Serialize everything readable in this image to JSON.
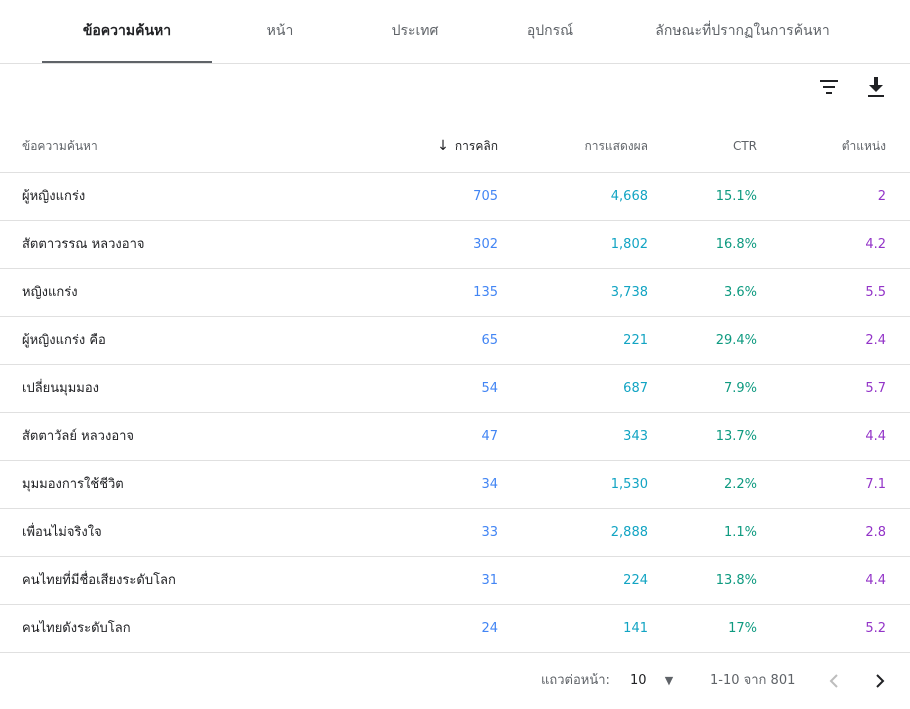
{
  "tabs": [
    {
      "label": "ข้อความค้นหา",
      "active": true
    },
    {
      "label": "หน้า"
    },
    {
      "label": "ประเทศ"
    },
    {
      "label": "อุปกรณ์"
    },
    {
      "label": "ลักษณะที่ปรากฏในการค้นหา"
    }
  ],
  "toolbar": {
    "filter_icon": "filter-icon",
    "download_icon": "download-icon"
  },
  "table": {
    "headers": {
      "query": "ข้อความค้นหา",
      "clicks": "การคลิก",
      "impressions": "การแสดงผล",
      "ctr": "CTR",
      "position": "ตำแหน่ง"
    },
    "sort_icon": "arrow-down-icon",
    "rows": [
      {
        "query": "ผู้หญิงแกร่ง",
        "clicks": "705",
        "impressions": "4,668",
        "ctr": "15.1%",
        "position": "2"
      },
      {
        "query": "สัตตาวรรณ หลวงอาจ",
        "clicks": "302",
        "impressions": "1,802",
        "ctr": "16.8%",
        "position": "4.2"
      },
      {
        "query": "หญิงแกร่ง",
        "clicks": "135",
        "impressions": "3,738",
        "ctr": "3.6%",
        "position": "5.5"
      },
      {
        "query": "ผู้หญิงแกร่ง คือ",
        "clicks": "65",
        "impressions": "221",
        "ctr": "29.4%",
        "position": "2.4"
      },
      {
        "query": "เปลี่ยนมุมมอง",
        "clicks": "54",
        "impressions": "687",
        "ctr": "7.9%",
        "position": "5.7"
      },
      {
        "query": "สัตตาวัลย์ หลวงอาจ",
        "clicks": "47",
        "impressions": "343",
        "ctr": "13.7%",
        "position": "4.4"
      },
      {
        "query": "มุมมองการใช้ชีวิต",
        "clicks": "34",
        "impressions": "1,530",
        "ctr": "2.2%",
        "position": "7.1"
      },
      {
        "query": "เพื่อนไม่จริงใจ",
        "clicks": "33",
        "impressions": "2,888",
        "ctr": "1.1%",
        "position": "2.8"
      },
      {
        "query": "คนไทยที่มีชื่อเสียงระดับโลก",
        "clicks": "31",
        "impressions": "224",
        "ctr": "13.8%",
        "position": "4.4"
      },
      {
        "query": "คนไทยดังระดับโลก",
        "clicks": "24",
        "impressions": "141",
        "ctr": "17%",
        "position": "5.2"
      }
    ]
  },
  "footer": {
    "rows_per_page_label": "แถวต่อหน้า:",
    "rows_per_page_value": "10",
    "range": "1-10 จาก 801"
  },
  "colors": {
    "clicks": "#4285f4",
    "impressions": "#12a4c3",
    "ctr": "#0e9a80",
    "position": "#9334c8"
  }
}
